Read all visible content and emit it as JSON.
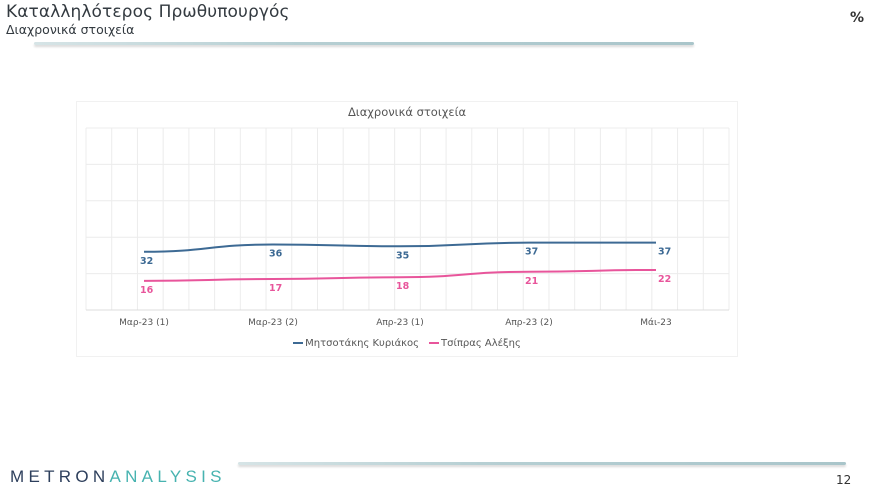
{
  "header": {
    "title": "Καταλληλότερος Πρωθυπουργός",
    "subtitle": "Διαχρονικά στοιχεία",
    "unit": "%"
  },
  "footer": {
    "logo_part1": "METRON",
    "logo_part2": "ANALYSIS",
    "page_number": "12"
  },
  "colors": {
    "series1": "#3d6a94",
    "series2": "#e8559b",
    "grid": "#ececec",
    "logo_dark": "#2d3f5c",
    "logo_teal": "#47b3b0"
  },
  "chart_data": {
    "type": "line",
    "title": "Διαχρονικά στοιχεία",
    "categories": [
      "Μαρ-23 (1)",
      "Μαρ-23 (2)",
      "Απρ-23 (1)",
      "Απρ-23 (2)",
      "Μάι-23"
    ],
    "series": [
      {
        "name": "Μητσοτάκης Κυριάκος",
        "values": [
          32,
          36,
          35,
          37,
          37
        ],
        "color": "#3d6a94"
      },
      {
        "name": "Τσίπρας Αλέξης",
        "values": [
          16,
          17,
          18,
          21,
          22
        ],
        "color": "#e8559b"
      }
    ],
    "xlabel": "",
    "ylabel": "",
    "ylim": [
      0,
      100
    ],
    "grid": true,
    "legend_position": "bottom",
    "data_labels": true
  }
}
